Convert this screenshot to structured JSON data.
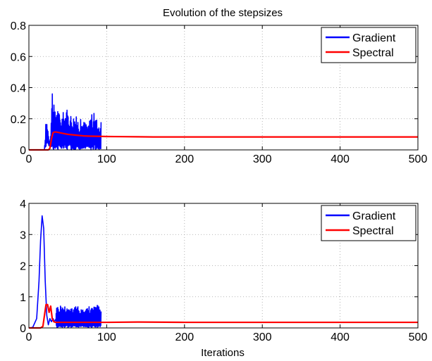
{
  "figure": {
    "title": "Evolution of the stepsizes",
    "xlabel": "Iterations"
  },
  "colors": {
    "gradient": "#0000ff",
    "spectral": "#ff0000",
    "grid": "#a0a0a0",
    "axes": "#000000"
  },
  "chart_data": [
    {
      "type": "line",
      "title": "Evolution of the stepsizes",
      "xlabel": "",
      "ylabel": "",
      "xlim": [
        0,
        500
      ],
      "ylim": [
        0,
        0.8
      ],
      "xticks": [
        0,
        100,
        200,
        300,
        400,
        500
      ],
      "yticks": [
        0,
        0.2,
        0.4,
        0.6,
        0.8
      ],
      "xtick_labels": [
        "0",
        "100",
        "200",
        "300",
        "400",
        "500"
      ],
      "ytick_labels": [
        "0",
        "0.2",
        "0.4",
        "0.6",
        "0.8"
      ],
      "grid": true,
      "legend_position": "top-right",
      "series": [
        {
          "name": "Gradient",
          "color": "#0000ff",
          "style": "oscillating",
          "x": [
            0,
            20,
            22,
            24,
            26,
            28,
            30,
            33,
            36,
            40,
            45,
            50,
            55,
            60,
            65,
            70,
            75,
            80,
            85,
            88,
            90,
            93
          ],
          "upper": [
            0,
            0,
            0.2,
            0.18,
            0.05,
            0.12,
            0.42,
            0.24,
            0.31,
            0.22,
            0.25,
            0.26,
            0.23,
            0.22,
            0.2,
            0.19,
            0.18,
            0.23,
            0.24,
            0.19,
            0.18,
            0.18
          ],
          "lower": [
            0,
            0,
            0.02,
            0.05,
            0.02,
            0.03,
            0.0,
            0.0,
            0.0,
            0.0,
            0.0,
            0.0,
            0.0,
            0.0,
            0.0,
            0.0,
            0.0,
            0.0,
            0.0,
            0.0,
            0.0,
            0.0
          ]
        },
        {
          "name": "Spectral",
          "color": "#ff0000",
          "style": "smooth",
          "x": [
            0,
            25,
            27,
            29,
            31,
            33,
            35,
            40,
            45,
            50,
            60,
            70,
            80,
            90,
            100,
            120,
            140,
            160,
            200,
            300,
            400,
            500
          ],
          "y": [
            0,
            0,
            0.01,
            0.07,
            0.11,
            0.115,
            0.115,
            0.11,
            0.105,
            0.1,
            0.095,
            0.09,
            0.088,
            0.087,
            0.086,
            0.085,
            0.084,
            0.083,
            0.083,
            0.083,
            0.083,
            0.083
          ]
        }
      ]
    },
    {
      "type": "line",
      "title": "",
      "xlabel": "Iterations",
      "ylabel": "",
      "xlim": [
        0,
        500
      ],
      "ylim": [
        0,
        4
      ],
      "xticks": [
        0,
        100,
        200,
        300,
        400,
        500
      ],
      "yticks": [
        0,
        1,
        2,
        3,
        4
      ],
      "xtick_labels": [
        "0",
        "100",
        "200",
        "300",
        "400",
        "500"
      ],
      "ytick_labels": [
        "0",
        "1",
        "2",
        "3",
        "4"
      ],
      "grid": true,
      "legend_position": "top-right",
      "series": [
        {
          "name": "Gradient",
          "color": "#0000ff",
          "style": "spike-then-oscillating",
          "x": [
            0,
            5,
            10,
            13,
            15,
            17,
            19,
            21,
            23,
            25,
            27,
            29,
            31,
            33,
            35
          ],
          "y": [
            0,
            0.02,
            0.3,
            1.5,
            2.8,
            3.6,
            3.2,
            1.5,
            0.4,
            0.1,
            0.3,
            0.2,
            0.3,
            0.2,
            0.3
          ],
          "band_x": [
            35,
            40,
            50,
            60,
            70,
            80,
            85,
            88,
            90,
            93
          ],
          "band_upper": [
            0.7,
            0.75,
            0.72,
            0.7,
            0.68,
            0.7,
            0.7,
            0.88,
            0.75,
            0.7
          ],
          "band_lower": [
            0.02,
            0.02,
            0.02,
            0.02,
            0.02,
            0.02,
            0.02,
            0.02,
            0.02,
            0.02
          ]
        },
        {
          "name": "Spectral",
          "color": "#ff0000",
          "style": "smooth",
          "x": [
            0,
            15,
            18,
            20,
            22,
            24,
            26,
            28,
            30,
            32,
            34,
            40,
            60,
            100,
            140,
            200,
            300,
            400,
            500
          ],
          "y": [
            0,
            0,
            0.05,
            0.4,
            0.75,
            0.75,
            0.5,
            0.7,
            0.3,
            0.2,
            0.18,
            0.18,
            0.18,
            0.18,
            0.19,
            0.18,
            0.18,
            0.18,
            0.18
          ]
        }
      ]
    }
  ]
}
